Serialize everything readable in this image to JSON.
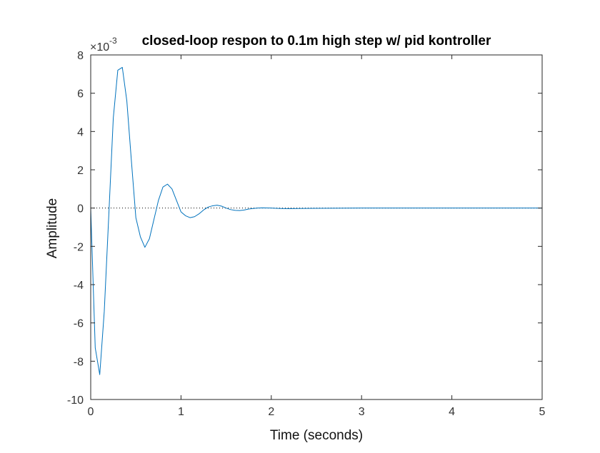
{
  "chart_data": {
    "type": "line",
    "title": "closed-loop respon to 0.1m high step w/ pid kontroller",
    "xlabel": "Time (seconds)",
    "ylabel": "Amplitude",
    "exponent_label": "×10",
    "exponent_power": "-3",
    "xlim": [
      0,
      5
    ],
    "ylim": [
      -10,
      8
    ],
    "x_ticks": [
      0,
      1,
      2,
      3,
      4,
      5
    ],
    "x_tick_labels": [
      "0",
      "1",
      "2",
      "3",
      "4",
      "5"
    ],
    "y_ticks": [
      8,
      6,
      4,
      2,
      0,
      -2,
      -4,
      -6,
      -8,
      -10
    ],
    "y_tick_labels": [
      "8",
      "6",
      "4",
      "2",
      "0",
      "-2",
      "-4",
      "-6",
      "-8",
      "-10"
    ],
    "grid": false,
    "reference_line": {
      "y": 0,
      "style": "dotted"
    },
    "series": [
      {
        "color": "#0072bd",
        "x": [
          0,
          0.05,
          0.1,
          0.15,
          0.2,
          0.25,
          0.3,
          0.35,
          0.4,
          0.45,
          0.5,
          0.55,
          0.6,
          0.65,
          0.7,
          0.75,
          0.8,
          0.85,
          0.9,
          0.95,
          1.0,
          1.05,
          1.1,
          1.15,
          1.2,
          1.25,
          1.3,
          1.35,
          1.4,
          1.45,
          1.5,
          1.55,
          1.6,
          1.65,
          1.7,
          1.75,
          1.8,
          1.85,
          1.9,
          2.0,
          2.1,
          2.2,
          2.3,
          2.5,
          3.0,
          3.5,
          4.0,
          4.5,
          5.0
        ],
        "y": [
          0,
          -7.3,
          -8.7,
          -5.4,
          -0.4,
          4.7,
          7.2,
          7.35,
          5.6,
          2.5,
          -0.5,
          -1.5,
          -2.05,
          -1.6,
          -0.6,
          0.4,
          1.1,
          1.25,
          1.0,
          0.4,
          -0.2,
          -0.4,
          -0.5,
          -0.45,
          -0.3,
          -0.1,
          0.05,
          0.12,
          0.15,
          0.1,
          0.0,
          -0.08,
          -0.12,
          -0.13,
          -0.1,
          -0.05,
          -0.02,
          0.0,
          0.01,
          0.0,
          -0.02,
          -0.03,
          -0.02,
          -0.01,
          0.0,
          0.0,
          0.0,
          0.0,
          0.0
        ]
      }
    ]
  }
}
